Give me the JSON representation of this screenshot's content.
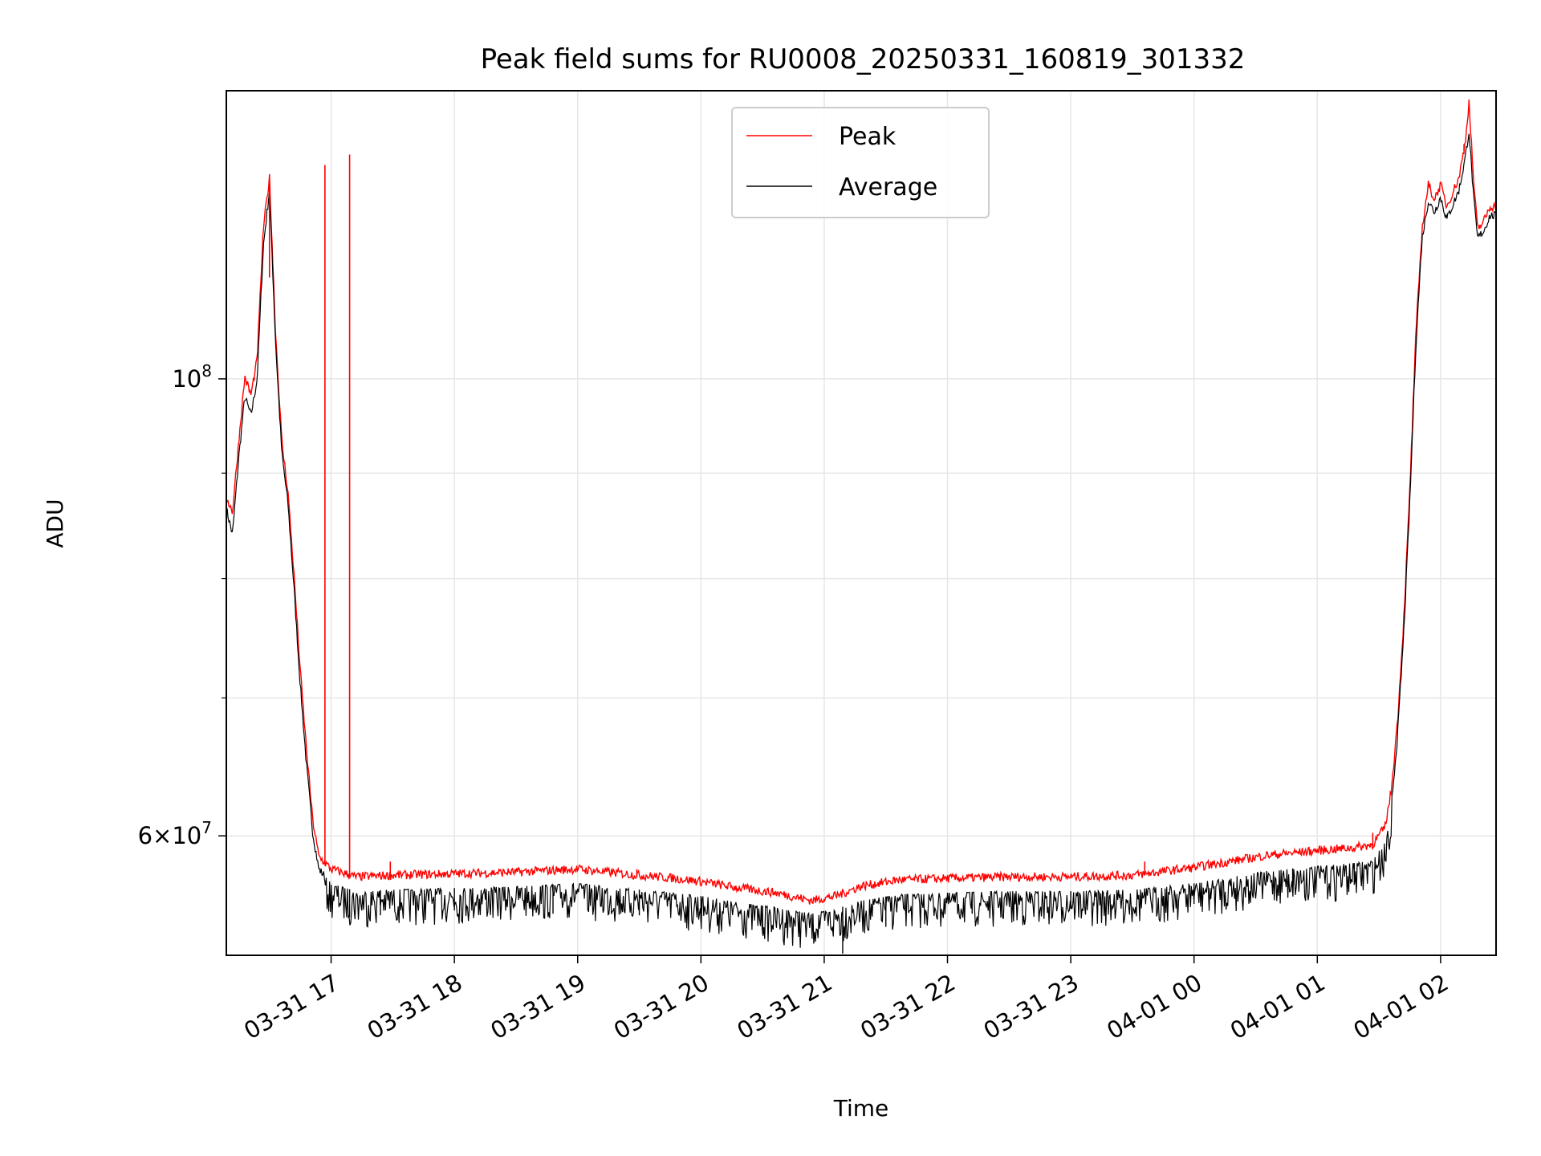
{
  "chart_data": {
    "type": "line",
    "title": "Peak field sums for RU0008_20250331_160819_301332",
    "xlabel": "Time",
    "ylabel": "ADU",
    "yscale": "log",
    "ylim": [
      52500000,
      138000000
    ],
    "xlim_hours": [
      16.15,
      26.45
    ],
    "grid": true,
    "legend_position": "upper-center",
    "x_ticks": [
      {
        "hour": 17,
        "label": "03-31 17"
      },
      {
        "hour": 18,
        "label": "03-31 18"
      },
      {
        "hour": 19,
        "label": "03-31 19"
      },
      {
        "hour": 20,
        "label": "03-31 20"
      },
      {
        "hour": 21,
        "label": "03-31 21"
      },
      {
        "hour": 22,
        "label": "03-31 22"
      },
      {
        "hour": 23,
        "label": "03-31 23"
      },
      {
        "hour": 24,
        "label": "04-01 00"
      },
      {
        "hour": 25,
        "label": "04-01 01"
      },
      {
        "hour": 26,
        "label": "04-01 02"
      }
    ],
    "y_ticks": [
      {
        "value": 60000000,
        "base": "6×10",
        "exp": "7"
      },
      {
        "value": 100000000,
        "base": "10",
        "exp": "8"
      }
    ],
    "y_minor_ticks": [
      70000000,
      80000000,
      90000000
    ],
    "series": [
      {
        "name": "Peak",
        "color": "#ff0000",
        "points": [
          [
            16.15,
            87500000
          ],
          [
            16.2,
            86000000
          ],
          [
            16.25,
            93000000
          ],
          [
            16.3,
            100000000
          ],
          [
            16.35,
            98000000
          ],
          [
            16.4,
            102000000
          ],
          [
            16.45,
            118000000
          ],
          [
            16.5,
            125000000
          ],
          [
            16.55,
            105000000
          ],
          [
            16.6,
            93000000
          ],
          [
            16.65,
            88000000
          ],
          [
            16.7,
            80000000
          ],
          [
            16.75,
            72000000
          ],
          [
            16.8,
            66000000
          ],
          [
            16.85,
            61000000
          ],
          [
            16.9,
            58500000
          ],
          [
            17.0,
            57700000
          ],
          [
            17.2,
            57200000
          ],
          [
            17.5,
            57300000
          ],
          [
            18.0,
            57400000
          ],
          [
            18.5,
            57500000
          ],
          [
            19.0,
            57700000
          ],
          [
            19.5,
            57300000
          ],
          [
            19.8,
            57100000
          ],
          [
            20.0,
            56900000
          ],
          [
            20.3,
            56500000
          ],
          [
            20.6,
            56200000
          ],
          [
            20.9,
            55700000
          ],
          [
            21.1,
            56000000
          ],
          [
            21.3,
            56600000
          ],
          [
            21.6,
            57000000
          ],
          [
            22.0,
            57100000
          ],
          [
            22.5,
            57200000
          ],
          [
            23.0,
            57200000
          ],
          [
            23.5,
            57300000
          ],
          [
            24.0,
            57800000
          ],
          [
            24.3,
            58200000
          ],
          [
            24.6,
            58600000
          ],
          [
            25.0,
            58900000
          ],
          [
            25.3,
            59100000
          ],
          [
            25.45,
            59300000
          ],
          [
            25.55,
            60500000
          ],
          [
            25.6,
            63000000
          ],
          [
            25.65,
            68000000
          ],
          [
            25.7,
            76000000
          ],
          [
            25.75,
            88000000
          ],
          [
            25.8,
            105000000
          ],
          [
            25.85,
            118000000
          ],
          [
            25.9,
            124000000
          ],
          [
            25.95,
            122000000
          ],
          [
            26.0,
            124000000
          ],
          [
            26.05,
            121000000
          ],
          [
            26.1,
            123000000
          ],
          [
            26.15,
            125000000
          ],
          [
            26.2,
            130000000
          ],
          [
            26.23,
            136000000
          ],
          [
            26.27,
            124000000
          ],
          [
            26.3,
            118000000
          ],
          [
            26.35,
            119000000
          ],
          [
            26.4,
            121000000
          ],
          [
            26.45,
            121000000
          ]
        ],
        "spikes": [
          [
            16.5,
            112000000
          ],
          [
            16.95,
            127000000
          ],
          [
            17.15,
            128500000
          ],
          [
            17.48,
            58300000
          ],
          [
            19.48,
            57800000
          ],
          [
            23.6,
            58300000
          ],
          [
            25.45,
            60200000
          ],
          [
            26.19,
            130000000
          ]
        ]
      },
      {
        "name": "Average",
        "color": "#000000",
        "points": [
          [
            16.15,
            86500000
          ],
          [
            16.2,
            84000000
          ],
          [
            16.25,
            91500000
          ],
          [
            16.3,
            98000000
          ],
          [
            16.35,
            96000000
          ],
          [
            16.4,
            100000000
          ],
          [
            16.45,
            116000000
          ],
          [
            16.5,
            123500000
          ],
          [
            16.55,
            104000000
          ],
          [
            16.6,
            92000000
          ],
          [
            16.65,
            87000000
          ],
          [
            16.7,
            79000000
          ],
          [
            16.75,
            71000000
          ],
          [
            16.8,
            65000000
          ],
          [
            16.85,
            60300000
          ],
          [
            16.9,
            57800000
          ],
          [
            17.0,
            56900000
          ],
          [
            17.2,
            56400000
          ],
          [
            17.5,
            56500000
          ],
          [
            18.0,
            56600000
          ],
          [
            18.5,
            56700000
          ],
          [
            19.0,
            56900000
          ],
          [
            19.5,
            56500000
          ],
          [
            19.8,
            56300000
          ],
          [
            20.0,
            56100000
          ],
          [
            20.3,
            55700000
          ],
          [
            20.6,
            55400000
          ],
          [
            20.9,
            55000000
          ],
          [
            21.1,
            55300000
          ],
          [
            21.3,
            55800000
          ],
          [
            21.6,
            56200000
          ],
          [
            22.0,
            56300000
          ],
          [
            22.5,
            56400000
          ],
          [
            23.0,
            56400000
          ],
          [
            23.5,
            56500000
          ],
          [
            24.0,
            56900000
          ],
          [
            24.3,
            57300000
          ],
          [
            24.6,
            57700000
          ],
          [
            25.0,
            58000000
          ],
          [
            25.3,
            58200000
          ],
          [
            25.45,
            58400000
          ],
          [
            25.55,
            59600000
          ],
          [
            25.6,
            62000000
          ],
          [
            25.65,
            67000000
          ],
          [
            25.7,
            75000000
          ],
          [
            25.75,
            87000000
          ],
          [
            25.8,
            104000000
          ],
          [
            25.85,
            117000000
          ],
          [
            25.9,
            122000000
          ],
          [
            25.95,
            120500000
          ],
          [
            26.0,
            122500000
          ],
          [
            26.05,
            119500000
          ],
          [
            26.1,
            121500000
          ],
          [
            26.15,
            123500000
          ],
          [
            26.2,
            128000000
          ],
          [
            26.23,
            132000000
          ],
          [
            26.27,
            122000000
          ],
          [
            26.3,
            117000000
          ],
          [
            26.35,
            118000000
          ],
          [
            26.4,
            120000000
          ],
          [
            26.45,
            120000000
          ]
        ],
        "dips": [
          [
            17.15,
            54800000
          ],
          [
            17.4,
            54900000
          ],
          [
            18.0,
            55200000
          ],
          [
            18.8,
            55000000
          ],
          [
            19.5,
            54900000
          ],
          [
            20.0,
            54500000
          ],
          [
            20.5,
            54000000
          ],
          [
            20.8,
            53900000
          ],
          [
            21.15,
            52600000
          ],
          [
            21.5,
            54200000
          ],
          [
            22.2,
            55000000
          ],
          [
            23.0,
            55300000
          ],
          [
            24.0,
            55600000
          ],
          [
            24.8,
            56300000
          ],
          [
            25.3,
            56800000
          ]
        ]
      }
    ]
  }
}
